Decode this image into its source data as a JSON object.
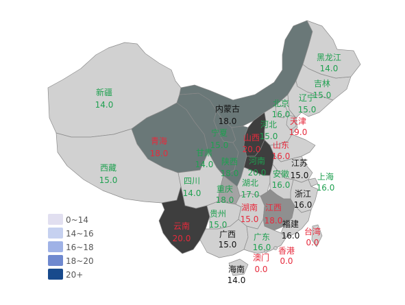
{
  "map": {
    "provinces": [
      {
        "name": "新疆",
        "value": "14.0",
        "fill": "#d1d1d1",
        "label_color": "#1fa050"
      },
      {
        "name": "西藏",
        "value": "15.0",
        "fill": "#d1d1d1",
        "label_color": "#1fa050"
      },
      {
        "name": "青海",
        "value": "18.0",
        "fill": "#6a7878",
        "label_color": "#e62a3c"
      },
      {
        "name": "甘肃",
        "value": "14.0",
        "fill": "#6a7878",
        "label_color": "#1fa050"
      },
      {
        "name": "内蒙古",
        "value": "18.0",
        "fill": "#6a7878",
        "label_color": "#111111"
      },
      {
        "name": "宁夏",
        "value": "15.0",
        "fill": "#6a7878",
        "label_color": "#1fa050"
      },
      {
        "name": "四川",
        "value": "14.0",
        "fill": "#d1d1d1",
        "label_color": "#1fa050"
      },
      {
        "name": "陕西",
        "value": "18.0",
        "fill": "#6a7878",
        "label_color": "#1fa050"
      },
      {
        "name": "山西",
        "value": "20.0",
        "fill": "#3e3e3e",
        "label_color": "#e62a3c"
      },
      {
        "name": "河南",
        "value": "20.0",
        "fill": "#3e3e3e",
        "label_color": "#1fa050"
      },
      {
        "name": "重庆",
        "value": "18.0",
        "fill": "#a3a3a3",
        "label_color": "#1fa050"
      },
      {
        "name": "云南",
        "value": "20.0",
        "fill": "#3e3e3e",
        "label_color": "#e62a3c"
      },
      {
        "name": "贵州",
        "value": "15.0",
        "fill": "#d1d1d1",
        "label_color": "#1fa050"
      },
      {
        "name": "广西",
        "value": "15.0",
        "fill": "#d1d1d1",
        "label_color": "#111111"
      },
      {
        "name": "湖南",
        "value": "15.0",
        "fill": "#d1d1d1",
        "label_color": "#e62a3c"
      },
      {
        "name": "湖北",
        "value": "17.0",
        "fill": "#d1d1d1",
        "label_color": "#1fa050"
      },
      {
        "name": "江西",
        "value": "18.0",
        "fill": "#8f8f8f",
        "label_color": "#e62a3c"
      },
      {
        "name": "广东",
        "value": "16.0",
        "fill": "#d1d1d1",
        "label_color": "#1fa050"
      },
      {
        "name": "澳门",
        "value": "0.0",
        "fill": "#d1d1d1",
        "label_color": "#e62a3c"
      },
      {
        "name": "香港",
        "value": "0.0",
        "fill": "#d1d1d1",
        "label_color": "#e62a3c"
      },
      {
        "name": "台湾",
        "value": "0.0",
        "fill": "#d1d1d1",
        "label_color": "#e62a3c"
      },
      {
        "name": "福建",
        "value": "16.0",
        "fill": "#d1d1d1",
        "label_color": "#111111"
      },
      {
        "name": "浙江",
        "value": "16.0",
        "fill": "#d1d1d1",
        "label_color": "#111111"
      },
      {
        "name": "上海",
        "value": "16.0",
        "fill": "#d1d1d1",
        "label_color": "#1fa050"
      },
      {
        "name": "江苏",
        "value": "15.0",
        "fill": "#d1d1d1",
        "label_color": "#111111"
      },
      {
        "name": "安徽",
        "value": "16.0",
        "fill": "#d1d1d1",
        "label_color": "#1fa050"
      },
      {
        "name": "山东",
        "value": "16.0",
        "fill": "#d1d1d1",
        "label_color": "#e62a3c"
      },
      {
        "name": "河北",
        "value": "15.0",
        "fill": "#d1d1d1",
        "label_color": "#1fa050"
      },
      {
        "name": "北京",
        "value": "16.0",
        "fill": "#d1d1d1",
        "label_color": "#1fa050"
      },
      {
        "name": "天津",
        "value": "19.0",
        "fill": "#d1d1d1",
        "label_color": "#e62a3c"
      },
      {
        "name": "辽宁",
        "value": "15.0",
        "fill": "#d1d1d1",
        "label_color": "#1fa050"
      },
      {
        "name": "吉林",
        "value": "15.0",
        "fill": "#d1d1d1",
        "label_color": "#1fa050"
      },
      {
        "name": "黑龙江",
        "value": "14.0",
        "fill": "#d1d1d1",
        "label_color": "#1fa050"
      },
      {
        "name": "海南",
        "value": "14.0",
        "fill": "#d1d1d1",
        "label_color": "#111111"
      }
    ]
  },
  "legend": {
    "items": [
      {
        "label": "0~14",
        "color": "#e1dff0"
      },
      {
        "label": "14~16",
        "color": "#c6d1f0"
      },
      {
        "label": "16~18",
        "color": "#9fb2e6"
      },
      {
        "label": "18~20",
        "color": "#6f89cf"
      },
      {
        "label": "20+",
        "color": "#184a8c"
      }
    ]
  }
}
